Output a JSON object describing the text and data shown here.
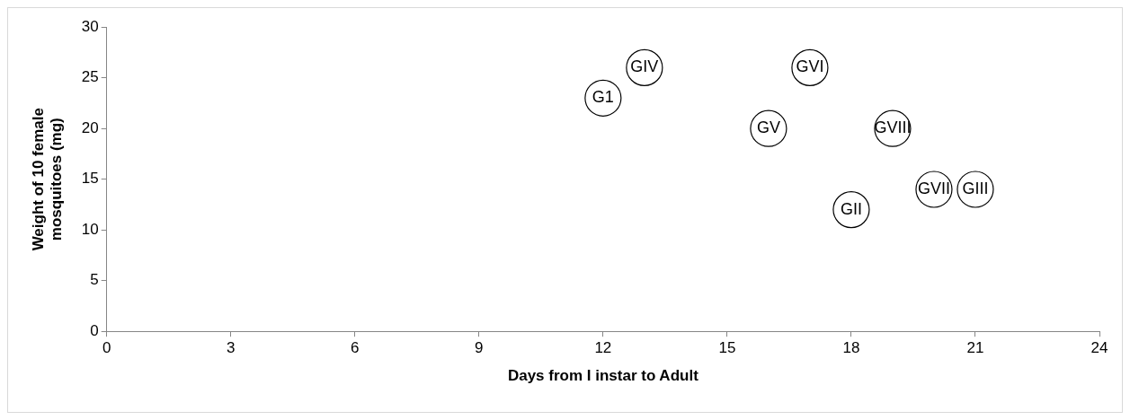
{
  "chart_data": {
    "type": "scatter",
    "xlabel": "Days from I instar to Adult",
    "ylabel": "Weight of 10 female mosquitoes (mg)",
    "x": [
      12,
      13,
      16,
      17,
      18,
      19,
      20,
      21
    ],
    "values": [
      23,
      26,
      20,
      26,
      12,
      20,
      14,
      14
    ],
    "color": "#000000",
    "marker": "circle",
    "grid": false,
    "legend": false,
    "xlim": [
      0,
      24
    ],
    "xticks": [
      0,
      3,
      6,
      9,
      12,
      15,
      18,
      21,
      24
    ],
    "ylim": [
      0,
      30
    ],
    "yticks": [
      0,
      5,
      10,
      15,
      20,
      25,
      30
    ],
    "annotations": [
      {
        "text": "G1",
        "x": 12,
        "y": 23
      },
      {
        "text": "GIV",
        "x": 13,
        "y": 26
      },
      {
        "text": "GV",
        "x": 16,
        "y": 20
      },
      {
        "text": "GVI",
        "x": 17,
        "y": 26
      },
      {
        "text": "GII",
        "x": 18,
        "y": 12
      },
      {
        "text": "GVIII",
        "x": 19,
        "y": 20
      },
      {
        "text": "GVII",
        "x": 20,
        "y": 14
      },
      {
        "text": "GIII",
        "x": 21,
        "y": 14
      }
    ]
  }
}
